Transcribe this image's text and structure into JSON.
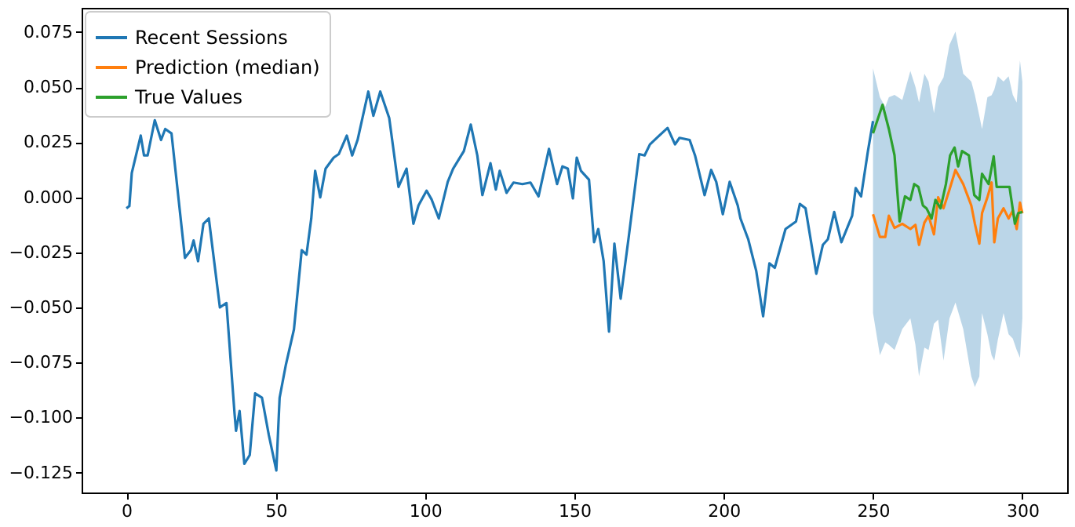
{
  "chart_data": {
    "type": "line",
    "xlim": [
      -15,
      315
    ],
    "ylim": [
      -0.134,
      0.086
    ],
    "xticks": [
      0,
      50,
      100,
      150,
      200,
      250,
      300
    ],
    "yticks": [
      {
        "value": -0.125,
        "label": "−0.125"
      },
      {
        "value": -0.1,
        "label": "−0.100"
      },
      {
        "value": -0.075,
        "label": "−0.075"
      },
      {
        "value": -0.05,
        "label": "−0.050"
      },
      {
        "value": -0.025,
        "label": "−0.025"
      },
      {
        "value": 0,
        "label": "0.000"
      },
      {
        "value": 0.025,
        "label": "0.025"
      },
      {
        "value": 0.05,
        "label": "0.050"
      },
      {
        "value": 0.075,
        "label": "0.075"
      }
    ],
    "grid": false,
    "legend": "top left",
    "series": [
      {
        "name": "Recent Sessions",
        "color": "#1f77b4",
        "x": [
          0,
          1,
          1.8,
          4.8,
          5.9,
          7.1,
          9.5,
          11.6,
          13,
          15.1,
          17.8,
          19.6,
          21.6,
          22.5,
          24,
          25.8,
          27.6,
          31.3,
          33.5,
          36.2,
          36.7,
          37.9,
          39.5,
          41.3,
          43.1,
          45.4,
          47.7,
          50.2,
          51.3,
          53.4,
          56.1,
          58.7,
          60.3,
          61.9,
          63.2,
          64.9,
          66.7,
          69.4,
          71.1,
          73.8,
          75.6,
          77.4,
          81,
          82.7,
          85,
          88,
          91.1,
          93.8,
          96.1,
          97.8,
          100.5,
          102.2,
          104.6,
          107.6,
          109.4,
          113,
          115.3,
          117.5,
          119.2,
          121.9,
          123.7,
          125,
          127.3,
          129.6,
          132.6,
          135.3,
          138,
          141.5,
          144.2,
          146,
          147.8,
          149.5,
          150.8,
          152.2,
          154.9,
          156.6,
          158,
          159.8,
          161.6,
          163.4,
          165.5,
          168.2,
          171.7,
          173.5,
          175.3,
          178,
          181.2,
          183.7,
          185.2,
          188.6,
          190.4,
          193.6,
          195.8,
          197.5,
          199.7,
          202,
          204.7,
          205.6,
          208.2,
          210.9,
          213.2,
          215.3,
          217.1,
          220.7,
          224.2,
          225.5,
          227.4,
          231,
          233.2,
          234.9,
          237,
          239.4,
          243,
          244.2,
          246,
          248.3,
          250
        ],
        "values": [
          -0.005,
          -0.004,
          0.011,
          0.028,
          0.019,
          0.019,
          0.035,
          0.026,
          0.031,
          0.029,
          -0.005,
          -0.0275,
          -0.024,
          -0.0196,
          -0.029,
          -0.012,
          -0.0096,
          -0.05,
          -0.048,
          -0.098,
          -0.106,
          -0.097,
          -0.121,
          -0.117,
          -0.089,
          -0.091,
          -0.108,
          -0.124,
          -0.091,
          -0.076,
          -0.06,
          -0.024,
          -0.026,
          -0.0096,
          0.012,
          0,
          0.013,
          0.018,
          0.0196,
          0.028,
          0.019,
          0.026,
          0.048,
          0.037,
          0.048,
          0.036,
          0.0047,
          0.013,
          -0.012,
          -0.0037,
          0.003,
          -0.001,
          -0.0096,
          0.007,
          0.013,
          0.021,
          0.033,
          0.019,
          0.001,
          0.0155,
          0.0035,
          0.012,
          0.002,
          0.0067,
          0.006,
          0.0067,
          0.0004,
          0.022,
          0.006,
          0.014,
          0.013,
          -0.0005,
          0.018,
          0.012,
          0.008,
          -0.0204,
          -0.0144,
          -0.029,
          -0.061,
          -0.021,
          -0.046,
          -0.018,
          0.0196,
          0.019,
          0.024,
          0.0275,
          0.0315,
          0.024,
          0.027,
          0.026,
          0.019,
          0.001,
          0.0124,
          0.007,
          -0.0077,
          0.007,
          -0.0037,
          -0.0096,
          -0.019,
          -0.0335,
          -0.054,
          -0.03,
          -0.032,
          -0.0144,
          -0.011,
          -0.003,
          -0.005,
          -0.0347,
          -0.0216,
          -0.019,
          -0.0067,
          -0.0204,
          -0.0084,
          0.0042,
          0.0004,
          0.021,
          0.0346
        ]
      },
      {
        "name": "Prediction (median)",
        "color": "#ff7f0e",
        "x": [
          250,
          252.3,
          254.1,
          255.3,
          257.2,
          259.8,
          262.5,
          264.2,
          265.4,
          267.2,
          268.6,
          270.4,
          271.8,
          273.6,
          275.6,
          277.6,
          280.2,
          282.9,
          284.1,
          285.6,
          286.5,
          288.3,
          289.7,
          290.6,
          291.8,
          293.7,
          295.4,
          296.8,
          298.1,
          299.2,
          300
        ],
        "values": [
          -0.0077,
          -0.018,
          -0.018,
          -0.0084,
          -0.0139,
          -0.012,
          -0.0144,
          -0.0125,
          -0.0216,
          -0.0115,
          -0.0084,
          -0.0168,
          0,
          -0.005,
          0.0035,
          0.0124,
          0.006,
          -0.0037,
          -0.012,
          -0.021,
          -0.0072,
          0,
          0.0067,
          -0.0204,
          -0.0096,
          -0.005,
          -0.0096,
          -0.006,
          -0.0144,
          -0.0024,
          -0.0072
        ],
        "upper": [
          0.0585,
          0.0454,
          0.0411,
          0.0454,
          0.0465,
          0.0442,
          0.0573,
          0.0501,
          0.043,
          0.0561,
          0.0525,
          0.0382,
          0.0501,
          0.0544,
          0.0692,
          0.0752,
          0.0561,
          0.0525,
          0.0465,
          0.037,
          0.031,
          0.0454,
          0.0463,
          0.0489,
          0.0549,
          0.0525,
          0.0549,
          0.0465,
          0.043,
          0.0621,
          0.0525
        ],
        "lower": [
          -0.0526,
          -0.0717,
          -0.0658,
          -0.067,
          -0.0693,
          -0.0598,
          -0.055,
          -0.067,
          -0.0813,
          -0.0682,
          -0.0693,
          -0.0574,
          -0.0555,
          -0.0741,
          -0.055,
          -0.0478,
          -0.0598,
          -0.0813,
          -0.0861,
          -0.0813,
          -0.0526,
          -0.0622,
          -0.0717,
          -0.0741,
          -0.0646,
          -0.0526,
          -0.0622,
          -0.0641,
          -0.0693,
          -0.0729,
          -0.055
        ]
      },
      {
        "name": "True Values",
        "color": "#2ca02c",
        "x": [
          250,
          253.2,
          255.3,
          257.2,
          258.9,
          260.7,
          262.5,
          263.8,
          265.2,
          266.7,
          267.9,
          269.6,
          270.9,
          272.6,
          274.4,
          275.8,
          277.3,
          278.5,
          279.8,
          282.1,
          283.9,
          285.6,
          286.5,
          288.7,
          290.4,
          291.4,
          293.6,
          295.7,
          297.5,
          298.6,
          300
        ],
        "values": [
          0.029,
          0.042,
          0.031,
          0.019,
          -0.011,
          0.0004,
          -0.0012,
          0.006,
          0.0047,
          -0.0037,
          -0.005,
          -0.0096,
          -0.0012,
          -0.005,
          0.006,
          0.019,
          0.0226,
          0.014,
          0.021,
          0.019,
          0.001,
          -0.0012,
          0.0107,
          0.006,
          0.0186,
          0.0047,
          0.0047,
          0.0047,
          -0.012,
          -0.0072,
          -0.0067
        ]
      }
    ]
  }
}
